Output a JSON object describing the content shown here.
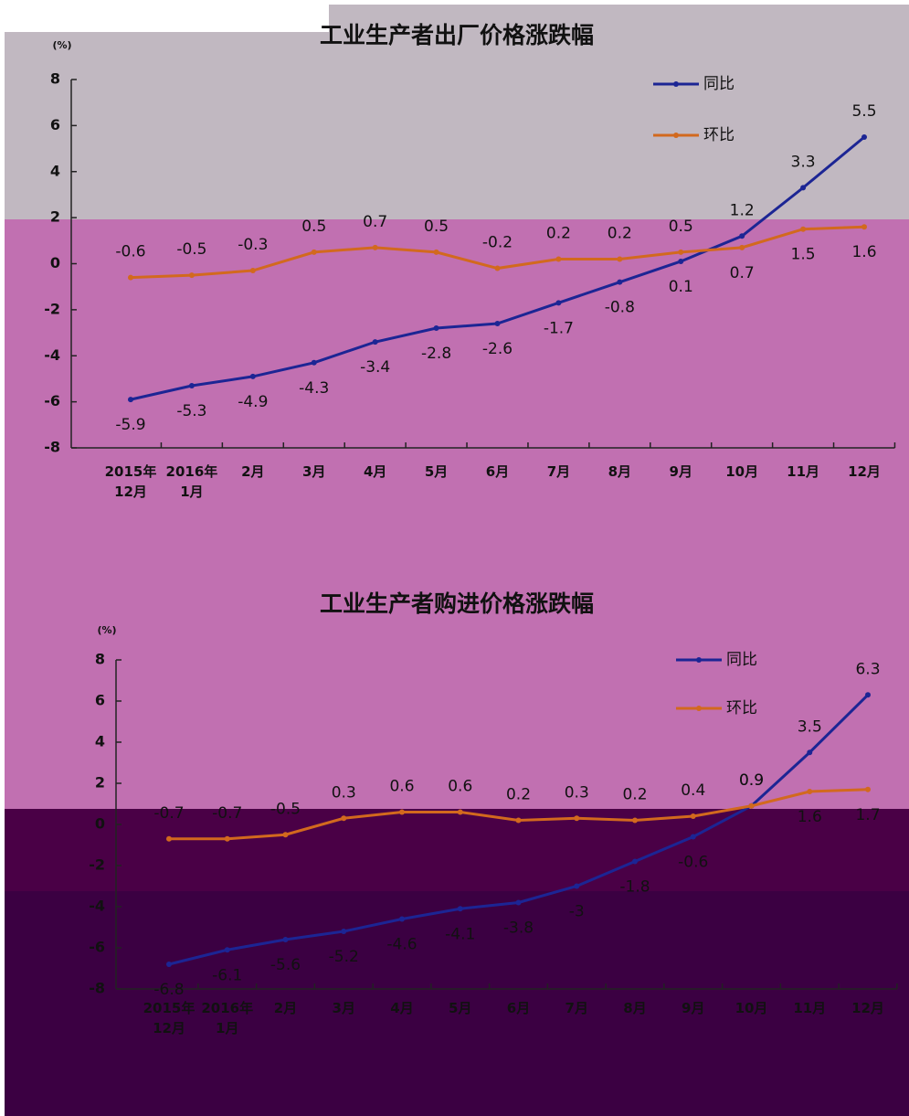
{
  "chart_data": [
    {
      "type": "line",
      "title": "工业生产者出厂价格涨跌幅",
      "y_label": "(%)",
      "categories": [
        "2015年12月",
        "2016年1月",
        "2月",
        "3月",
        "4月",
        "5月",
        "6月",
        "7月",
        "8月",
        "9月",
        "10月",
        "11月",
        "12月"
      ],
      "series": [
        {
          "name": "同比",
          "color": "#1c2594",
          "values": [
            -5.9,
            -5.3,
            -4.9,
            -4.3,
            -3.4,
            -2.8,
            -2.6,
            -1.7,
            -0.8,
            0.1,
            1.2,
            3.3,
            5.5
          ]
        },
        {
          "name": "环比",
          "color": "#d2691e",
          "values": [
            -0.6,
            -0.5,
            -0.3,
            0.5,
            0.7,
            0.5,
            -0.2,
            0.2,
            0.2,
            0.5,
            0.7,
            1.5,
            1.6
          ]
        }
      ],
      "ylim": [
        -8,
        8
      ],
      "yticks": [
        -8,
        -6,
        -4,
        -2,
        0,
        2,
        4,
        6,
        8
      ],
      "grid": false
    },
    {
      "type": "line",
      "title": "工业生产者购进价格涨跌幅",
      "y_label": "(%)",
      "categories": [
        "2015年12月",
        "2016年1月",
        "2月",
        "3月",
        "4月",
        "5月",
        "6月",
        "7月",
        "8月",
        "9月",
        "10月",
        "11月",
        "12月"
      ],
      "series": [
        {
          "name": "同比",
          "color": "#1c2594",
          "values": [
            -6.8,
            -6.1,
            -5.6,
            -5.2,
            -4.6,
            -4.1,
            -3.8,
            -3.0,
            -1.8,
            -0.6,
            0.9,
            3.5,
            6.3
          ]
        },
        {
          "name": "环比",
          "color": "#d2691e",
          "values": [
            -0.7,
            -0.7,
            -0.5,
            0.3,
            0.6,
            0.6,
            0.2,
            0.3,
            0.2,
            0.4,
            0.9,
            1.6,
            1.7
          ]
        }
      ],
      "ylim": [
        -8,
        8
      ],
      "yticks": [
        -8,
        -6,
        -4,
        -2,
        0,
        2,
        4,
        6,
        8
      ],
      "grid": false
    }
  ]
}
